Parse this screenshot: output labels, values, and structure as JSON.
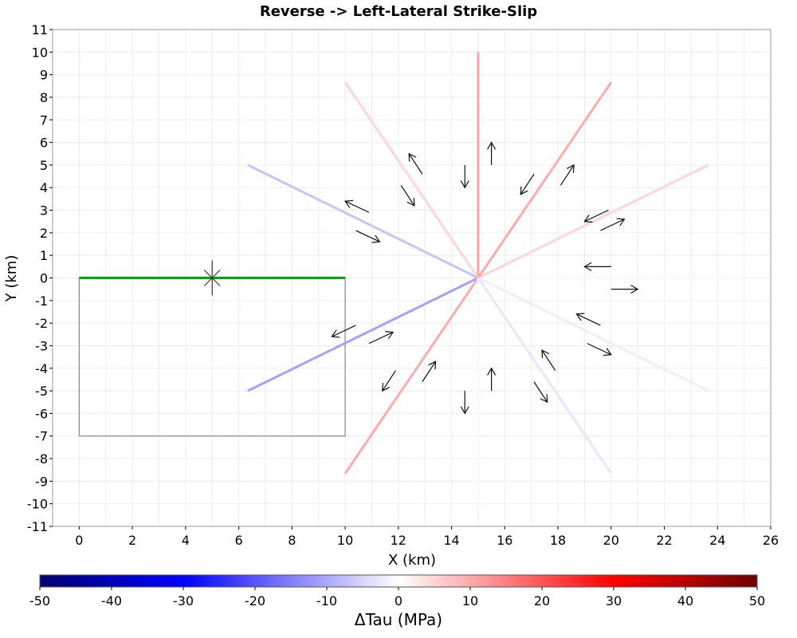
{
  "chart_data": {
    "type": "line",
    "title": "Reverse -> Left-Lateral Strike-Slip",
    "xlabel": "X (km)",
    "ylabel": "Y (km)",
    "xlim": [
      -1,
      26
    ],
    "ylim": [
      -11,
      11
    ],
    "xticks": [
      0,
      2,
      4,
      6,
      8,
      10,
      12,
      14,
      16,
      18,
      20,
      22,
      24,
      26
    ],
    "yticks": [
      -11,
      -10,
      -9,
      -8,
      -7,
      -6,
      -5,
      -4,
      -3,
      -2,
      -1,
      0,
      1,
      2,
      3,
      4,
      5,
      6,
      7,
      8,
      9,
      10,
      11
    ],
    "grid": true,
    "source_fault": {
      "trace": [
        [
          0,
          0
        ],
        [
          10,
          0
        ]
      ],
      "color": "#00aa00",
      "box": [
        [
          0,
          0
        ],
        [
          10,
          0
        ],
        [
          10,
          -7
        ],
        [
          0,
          -7
        ],
        [
          0,
          0
        ]
      ],
      "hypocenter": [
        5,
        0
      ]
    },
    "receiver_center": [
      15,
      0
    ],
    "receiver_faults": [
      {
        "angle_deg": 0,
        "end": [
          25,
          0
        ],
        "dtau": 1
      },
      {
        "angle_deg": 30,
        "end": [
          23.66,
          5
        ],
        "dtau": 5
      },
      {
        "angle_deg": 60,
        "end": [
          20,
          8.66
        ],
        "dtau": 10
      },
      {
        "angle_deg": 90,
        "end": [
          15,
          10
        ],
        "dtau": 11
      },
      {
        "angle_deg": 120,
        "end": [
          10,
          8.66
        ],
        "dtau": 5
      },
      {
        "angle_deg": 150,
        "end": [
          6.34,
          5
        ],
        "dtau": -7
      },
      {
        "angle_deg": 210,
        "end": [
          6.34,
          -5
        ],
        "dtau": -11
      },
      {
        "angle_deg": 240,
        "end": [
          10,
          -8.66
        ],
        "dtau": 10
      },
      {
        "angle_deg": 270,
        "end": [
          15,
          -10
        ],
        "dtau": -1
      },
      {
        "angle_deg": 300,
        "end": [
          20,
          -8.66
        ],
        "dtau": -3
      },
      {
        "angle_deg": 330,
        "end": [
          23.66,
          -5
        ],
        "dtau": -2
      }
    ],
    "slip_arrows": [
      {
        "from": [
          15.5,
          5.0
        ],
        "to": [
          15.5,
          6.0
        ]
      },
      {
        "from": [
          14.5,
          5.0
        ],
        "to": [
          14.5,
          4.0
        ]
      },
      {
        "from": [
          17.1,
          4.6
        ],
        "to": [
          16.6,
          3.7
        ]
      },
      {
        "from": [
          18.1,
          4.1
        ],
        "to": [
          18.6,
          5.0
        ]
      },
      {
        "from": [
          19.9,
          3.0
        ],
        "to": [
          19.0,
          2.5
        ]
      },
      {
        "from": [
          19.6,
          2.1
        ],
        "to": [
          20.5,
          2.6
        ]
      },
      {
        "from": [
          20.0,
          0.5
        ],
        "to": [
          19.0,
          0.5
        ]
      },
      {
        "from": [
          20.0,
          -0.5
        ],
        "to": [
          21.0,
          -0.5
        ]
      },
      {
        "from": [
          19.6,
          -2.1
        ],
        "to": [
          18.7,
          -1.6
        ]
      },
      {
        "from": [
          19.1,
          -2.9
        ],
        "to": [
          20.0,
          -3.4
        ]
      },
      {
        "from": [
          17.9,
          -4.1
        ],
        "to": [
          17.4,
          -3.2
        ]
      },
      {
        "from": [
          17.1,
          -4.6
        ],
        "to": [
          17.6,
          -5.5
        ]
      },
      {
        "from": [
          15.5,
          -5.0
        ],
        "to": [
          15.5,
          -4.0
        ]
      },
      {
        "from": [
          14.5,
          -5.0
        ],
        "to": [
          14.5,
          -6.0
        ]
      },
      {
        "from": [
          12.9,
          -4.6
        ],
        "to": [
          13.4,
          -3.7
        ]
      },
      {
        "from": [
          11.9,
          -4.1
        ],
        "to": [
          11.4,
          -5.0
        ]
      },
      {
        "from": [
          10.9,
          -2.9
        ],
        "to": [
          11.8,
          -2.4
        ]
      },
      {
        "from": [
          10.4,
          -2.1
        ],
        "to": [
          9.5,
          -2.6
        ]
      },
      {
        "from": [
          10.4,
          2.1
        ],
        "to": [
          11.3,
          1.6
        ]
      },
      {
        "from": [
          10.9,
          2.9
        ],
        "to": [
          10.0,
          3.4
        ]
      },
      {
        "from": [
          12.1,
          4.1
        ],
        "to": [
          12.6,
          3.2
        ]
      },
      {
        "from": [
          12.9,
          4.6
        ],
        "to": [
          12.4,
          5.5
        ]
      }
    ]
  },
  "colorbar": {
    "label": "ΔTau (MPa)",
    "min": -50,
    "max": 50,
    "ticks": [
      -50,
      -40,
      -30,
      -20,
      -10,
      0,
      10,
      20,
      30,
      40,
      50
    ],
    "stops": [
      {
        "v": -50,
        "color": "#00006e"
      },
      {
        "v": -30,
        "color": "#0000ff"
      },
      {
        "v": 0,
        "color": "#ffffff"
      },
      {
        "v": 30,
        "color": "#ff0000"
      },
      {
        "v": 50,
        "color": "#6e0000"
      }
    ]
  }
}
